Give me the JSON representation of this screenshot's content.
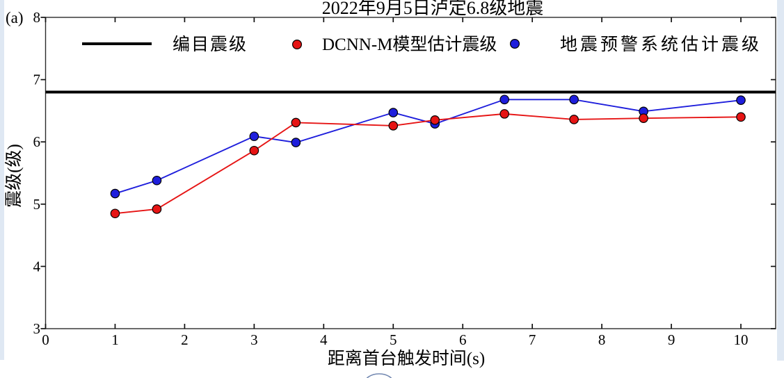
{
  "colors": {
    "page_background": "#dfe8f3",
    "figure_background": "#ffffff",
    "axis_box": "#2b2b2b",
    "tick": "#111111",
    "watermark": "#7388b1"
  },
  "chart_data": {
    "type": "line",
    "title": "2022年9月5日泸定6.8级地震",
    "panel_label": "(a)",
    "xlabel": "距离首台触发时间(s)",
    "ylabel": "震级(级)",
    "xlim": [
      0,
      10.5
    ],
    "ylim": [
      3,
      8
    ],
    "xticks": [
      0,
      1,
      2,
      3,
      4,
      5,
      6,
      7,
      8,
      9,
      10
    ],
    "yticks": [
      3,
      4,
      5,
      6,
      7,
      8
    ],
    "grid": false,
    "legend_position": "top-inside",
    "reference": {
      "label": "编目震级",
      "value": 6.8,
      "color": "#000000",
      "linewidth": 4
    },
    "x": [
      1.0,
      1.6,
      3.0,
      3.6,
      5.0,
      5.6,
      6.6,
      7.6,
      8.6,
      10.0
    ],
    "series": [
      {
        "name": "DCNN-M模型估计震级",
        "color": "#e61414",
        "values": [
          4.85,
          4.92,
          5.86,
          6.31,
          6.26,
          6.35,
          6.45,
          6.36,
          6.38,
          6.4
        ]
      },
      {
        "name": "地震预警系统估计震级",
        "color": "#1e1edc",
        "values": [
          5.17,
          5.38,
          6.09,
          5.99,
          6.47,
          6.29,
          6.68,
          6.68,
          6.49,
          6.67
        ]
      }
    ]
  }
}
